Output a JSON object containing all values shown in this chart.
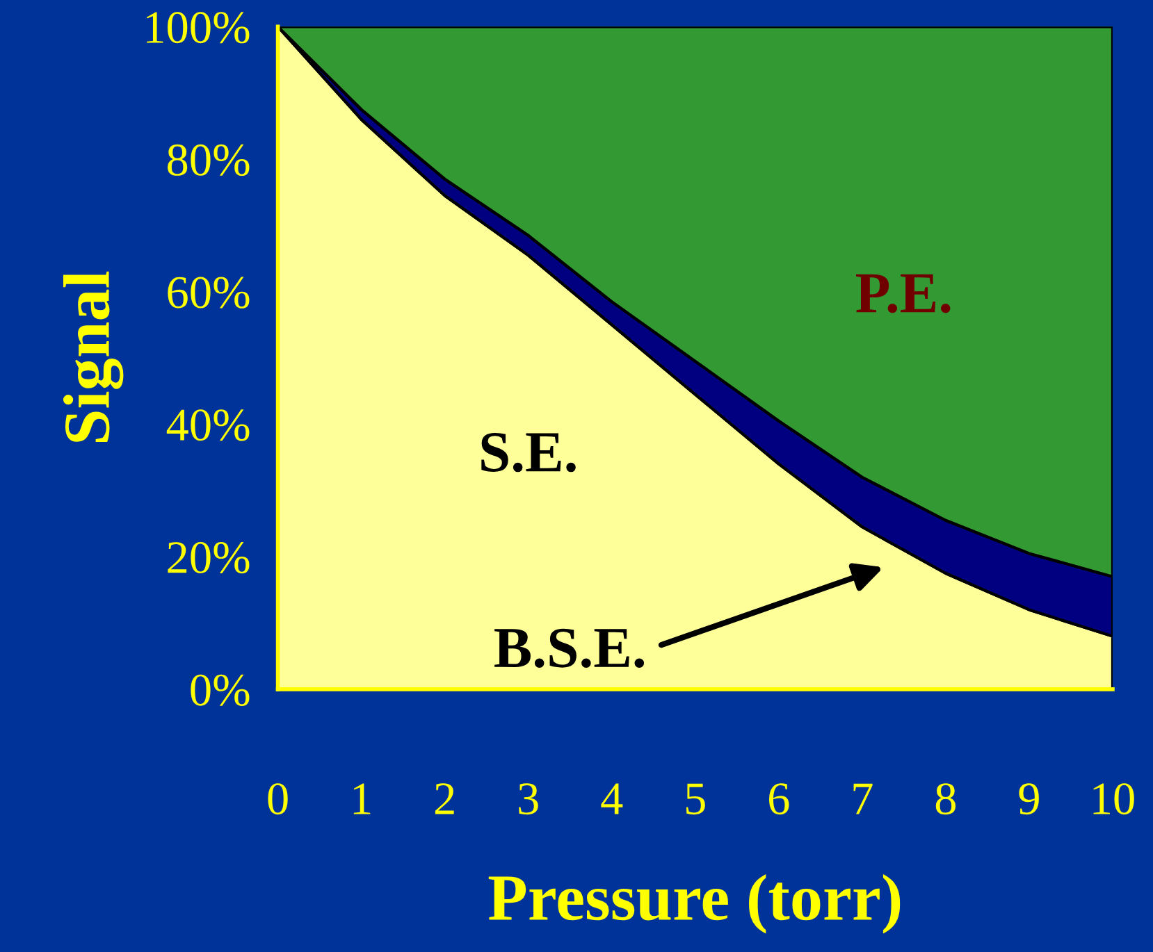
{
  "chart_data": {
    "type": "area",
    "stacked": true,
    "xlabel": "Pressure (torr)",
    "ylabel": "Signal",
    "x": [
      0,
      1,
      2,
      3,
      4,
      5,
      6,
      7,
      8,
      9,
      10
    ],
    "series": [
      {
        "name": "S.E.",
        "color": "#ffff99",
        "values": [
          100,
          86,
          74.5,
          65.5,
          55,
          44.5,
          34,
          24.5,
          17.5,
          12,
          8
        ]
      },
      {
        "name": "B.S.E.",
        "color": "#000080",
        "values": [
          0,
          1.5,
          2.5,
          3,
          3.5,
          5,
          6.5,
          7.5,
          8,
          8.5,
          9
        ]
      },
      {
        "name": "P.E.",
        "color": "#339933",
        "values": [
          0,
          12.5,
          23,
          31.5,
          41.5,
          50.5,
          59.5,
          68,
          74.5,
          79.5,
          83
        ]
      }
    ],
    "xlim": [
      0,
      10
    ],
    "xticks": [
      0,
      1,
      2,
      3,
      4,
      5,
      6,
      7,
      8,
      9,
      10
    ],
    "ylim": [
      0,
      100
    ],
    "yticks": [
      {
        "value": 0,
        "label": "0%"
      },
      {
        "value": 20,
        "label": "20%"
      },
      {
        "value": 40,
        "label": "40%"
      },
      {
        "value": 60,
        "label": "60%"
      },
      {
        "value": 80,
        "label": "80%"
      },
      {
        "value": 100,
        "label": "100%"
      }
    ],
    "grid": false,
    "legend": false
  }
}
